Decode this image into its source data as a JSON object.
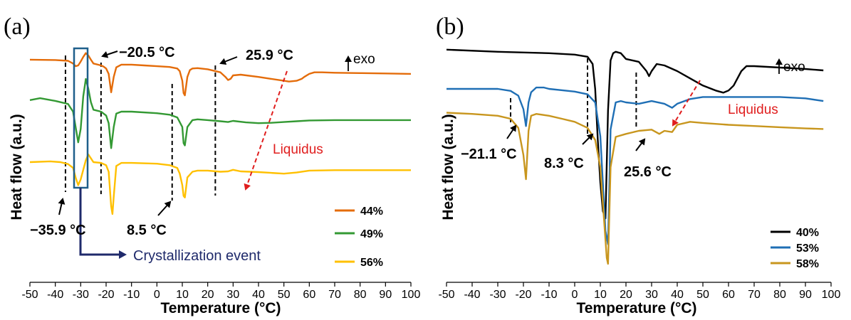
{
  "chart_data": [
    {
      "panel": "(a)",
      "type": "line",
      "xlabel": "Temperature (°C)",
      "ylabel": "Heat flow (a.u.)",
      "xlim": [
        -50,
        100
      ],
      "xticks": [
        -50,
        -40,
        -30,
        -20,
        -10,
        0,
        10,
        20,
        30,
        40,
        50,
        60,
        70,
        80,
        90,
        100
      ],
      "exo_label": "exo",
      "series": [
        {
          "name": "44%",
          "color": "#e46c0a",
          "x": [
            -50,
            -40,
            -35,
            -33,
            -32,
            -31,
            -30,
            -29,
            -28,
            -27,
            -26,
            -25,
            -22,
            -21,
            -20,
            -19,
            -18,
            -17,
            -16,
            -14,
            -10,
            -5,
            0,
            5,
            8,
            9,
            10,
            10.5,
            11,
            12,
            13,
            14,
            16,
            20,
            25,
            27,
            28,
            29,
            30,
            33,
            40,
            45,
            50,
            52,
            55,
            57,
            58,
            60,
            62,
            65,
            70,
            80,
            90,
            100
          ],
          "y": [
            0.15,
            0.14,
            0.12,
            0.05,
            -0.02,
            0.0,
            0.1,
            0.22,
            0.32,
            0.26,
            0.15,
            0.05,
            0.0,
            -0.03,
            -0.08,
            -0.22,
            -0.7,
            -0.3,
            -0.05,
            0.02,
            0.02,
            0.0,
            -0.02,
            -0.04,
            -0.08,
            -0.15,
            -0.4,
            -0.72,
            -0.78,
            -0.3,
            -0.12,
            -0.08,
            -0.07,
            -0.1,
            -0.18,
            -0.3,
            -0.38,
            -0.35,
            -0.26,
            -0.24,
            -0.3,
            -0.35,
            -0.4,
            -0.42,
            -0.4,
            -0.35,
            -0.3,
            -0.22,
            -0.18,
            -0.18,
            -0.19,
            -0.2,
            -0.21,
            -0.22
          ]
        },
        {
          "name": "49%",
          "color": "#339933",
          "x": [
            -50,
            -46,
            -40,
            -35,
            -33,
            -32,
            -31,
            -30,
            -29,
            -28,
            -27,
            -26,
            -25,
            -22,
            -20,
            -19,
            -18,
            -17,
            -16,
            -14,
            -10,
            0,
            5,
            8,
            10,
            10.5,
            11,
            12,
            14,
            16,
            20,
            25,
            28,
            30,
            35,
            40,
            45,
            50,
            55,
            60,
            70,
            80,
            90,
            100
          ],
          "y": [
            0.3,
            0.35,
            0.28,
            0.2,
            0.0,
            -0.4,
            -0.8,
            -0.45,
            0.4,
            0.85,
            0.6,
            0.25,
            0.05,
            0.0,
            -0.1,
            -0.3,
            -0.95,
            -0.4,
            -0.05,
            0.0,
            0.0,
            -0.04,
            -0.08,
            -0.15,
            -0.4,
            -0.82,
            -0.88,
            -0.4,
            -0.22,
            -0.2,
            -0.22,
            -0.25,
            -0.27,
            -0.24,
            -0.28,
            -0.3,
            -0.29,
            -0.27,
            -0.25,
            -0.23,
            -0.22,
            -0.22,
            -0.22,
            -0.22
          ]
        },
        {
          "name": "56%",
          "color": "#ffc000",
          "x": [
            -50,
            -42,
            -38,
            -35,
            -33,
            -32,
            -31,
            -30,
            -29,
            -28,
            -27,
            -26,
            -25,
            -22,
            -20,
            -19,
            -18,
            -17.5,
            -17,
            -16,
            -14,
            -10,
            0,
            5,
            8,
            9,
            10,
            10.5,
            11,
            12,
            14,
            16,
            20,
            25,
            28,
            30,
            33,
            40,
            45,
            50,
            55,
            60,
            70,
            80,
            90,
            100
          ],
          "y": [
            0.0,
            0.02,
            0.0,
            -0.05,
            -0.15,
            -0.4,
            -0.6,
            -0.45,
            -0.2,
            0.05,
            0.2,
            0.1,
            0.0,
            -0.02,
            -0.08,
            -0.25,
            -1.15,
            -1.35,
            -0.9,
            -0.1,
            -0.02,
            -0.02,
            -0.04,
            -0.08,
            -0.15,
            -0.3,
            -0.6,
            -0.88,
            -0.92,
            -0.4,
            -0.25,
            -0.22,
            -0.22,
            -0.25,
            -0.24,
            -0.2,
            -0.24,
            -0.26,
            -0.28,
            -0.3,
            -0.27,
            -0.22,
            -0.21,
            -0.21,
            -0.21,
            -0.21
          ]
        }
      ],
      "vlines": [
        -36,
        -22,
        6,
        23
      ],
      "annotations": [
        "−35.9 °C",
        "−20.5 °C",
        "8.5 °C",
        "25.9 °C"
      ],
      "liquidus_label": "Liquidus",
      "crystallization_label": "Crystallization event",
      "legend": "bottom-right",
      "grid": false
    },
    {
      "panel": "(b)",
      "type": "line",
      "xlabel": "Temperature (°C)",
      "ylabel": "Heat flow (a.u.)",
      "xlim": [
        -50,
        100
      ],
      "xticks": [
        -50,
        -40,
        -30,
        -20,
        -10,
        0,
        10,
        20,
        30,
        40,
        50,
        60,
        70,
        80,
        90,
        100
      ],
      "exo_label": "exo",
      "series": [
        {
          "name": "40%",
          "color": "#000000",
          "x": [
            -50,
            -30,
            -10,
            0,
            5,
            7,
            8,
            9,
            10,
            11,
            12,
            13,
            14,
            15,
            16,
            18,
            20,
            25,
            28,
            29,
            30,
            32,
            35,
            40,
            45,
            50,
            55,
            58,
            60,
            62,
            65,
            67,
            70,
            80,
            90,
            97
          ],
          "y": [
            0.25,
            0.22,
            0.2,
            0.18,
            0.15,
            0.05,
            -0.3,
            -1.0,
            -1.6,
            -2.0,
            -2.1,
            -0.6,
            0.1,
            0.2,
            0.22,
            0.2,
            0.12,
            0.08,
            -0.05,
            -0.12,
            -0.05,
            0.05,
            0.03,
            -0.05,
            -0.15,
            -0.25,
            -0.32,
            -0.35,
            -0.32,
            -0.25,
            -0.05,
            0.02,
            0.02,
            0.0,
            -0.02,
            -0.04
          ]
        },
        {
          "name": "53%",
          "color": "#1f6fb5",
          "x": [
            -50,
            -30,
            -25,
            -22,
            -20,
            -19,
            -18,
            -17,
            -15,
            -12,
            -10,
            0,
            5,
            8,
            10,
            11,
            12,
            13,
            14,
            16,
            18,
            20,
            25,
            30,
            35,
            38,
            40,
            45,
            50,
            60,
            70,
            80,
            90,
            97
          ],
          "y": [
            0.0,
            0.0,
            -0.03,
            -0.1,
            -0.3,
            -0.55,
            -0.2,
            -0.05,
            0.02,
            0.02,
            0.0,
            -0.04,
            -0.08,
            -0.2,
            -0.7,
            -1.4,
            -2.1,
            -2.3,
            -0.6,
            -0.2,
            -0.18,
            -0.2,
            -0.22,
            -0.18,
            -0.22,
            -0.28,
            -0.22,
            -0.15,
            -0.12,
            -0.12,
            -0.12,
            -0.12,
            -0.14,
            -0.18
          ]
        },
        {
          "name": "58%",
          "color": "#c8961e",
          "x": [
            -50,
            -40,
            -30,
            -25,
            -22,
            -20,
            -19,
            -18,
            -17,
            -15,
            -10,
            -5,
            0,
            5,
            8,
            10,
            11,
            12,
            12.5,
            13,
            14,
            16,
            20,
            25,
            30,
            33,
            35,
            38,
            40,
            45,
            50,
            60,
            70,
            80,
            90,
            97
          ],
          "y": [
            -0.1,
            -0.12,
            -0.15,
            -0.2,
            -0.35,
            -0.8,
            -1.2,
            -0.4,
            -0.15,
            -0.12,
            -0.15,
            -0.2,
            -0.25,
            -0.35,
            -0.55,
            -1.0,
            -1.6,
            -2.2,
            -2.5,
            -2.6,
            -1.0,
            -0.5,
            -0.45,
            -0.4,
            -0.38,
            -0.45,
            -0.4,
            -0.42,
            -0.3,
            -0.25,
            -0.27,
            -0.3,
            -0.32,
            -0.34,
            -0.36,
            -0.37
          ]
        }
      ],
      "vlines": [
        -25,
        5,
        24
      ],
      "annotations": [
        "−21.1 °C",
        "8.3 °C",
        "25.6 °C"
      ],
      "liquidus_label": "Liquidus",
      "legend": "bottom-right",
      "grid": false
    }
  ]
}
